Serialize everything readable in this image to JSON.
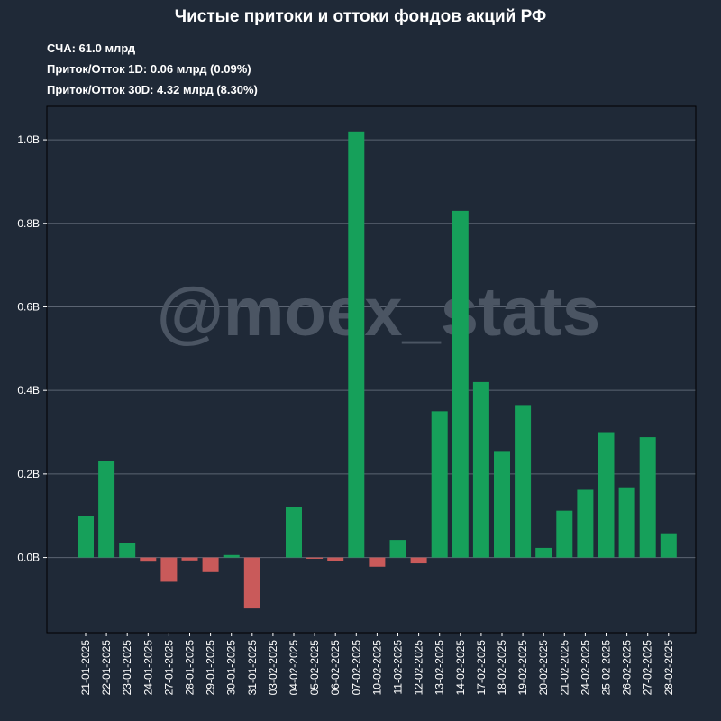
{
  "header": {
    "title": "Чистые притоки и оттоки фондов акций РФ",
    "stat_aum": "СЧА: 61.0 млрд",
    "stat_1d": "Приток/Отток 1D: 0.06 млрд (0.09%)",
    "stat_30d": "Приток/Отток 30D: 4.32 млрд (8.30%)"
  },
  "watermark": "@moex_stats",
  "colors": {
    "background": "#1f2937",
    "positive": "#16a05a",
    "negative": "#c95a5a",
    "grid": "#5b6472",
    "axis_text": "#ffffff",
    "watermark": "#4b5563"
  },
  "chart_data": {
    "type": "bar",
    "categories": [
      "21-01-2025",
      "22-01-2025",
      "23-01-2025",
      "24-01-2025",
      "27-01-2025",
      "28-01-2025",
      "29-01-2025",
      "30-01-2025",
      "31-01-2025",
      "03-02-2025",
      "04-02-2025",
      "05-02-2025",
      "06-02-2025",
      "07-02-2025",
      "10-02-2025",
      "11-02-2025",
      "12-02-2025",
      "13-02-2025",
      "14-02-2025",
      "17-02-2025",
      "18-02-2025",
      "19-02-2025",
      "20-02-2025",
      "21-02-2025",
      "24-02-2025",
      "25-02-2025",
      "26-02-2025",
      "27-02-2025",
      "28-02-2025"
    ],
    "values": [
      0.1,
      0.23,
      0.035,
      -0.01,
      -0.058,
      -0.007,
      -0.035,
      0.006,
      -0.122,
      0.0,
      0.12,
      -0.003,
      -0.008,
      1.02,
      -0.022,
      0.042,
      -0.014,
      0.35,
      0.83,
      0.42,
      0.255,
      0.365,
      0.023,
      0.112,
      0.162,
      0.3,
      0.168,
      0.288,
      0.058
    ],
    "yticks": [
      "0.0B",
      "0.2B",
      "0.4B",
      "0.6B",
      "0.8B",
      "1.0B"
    ],
    "ytick_values": [
      0,
      0.2,
      0.4,
      0.6,
      0.8,
      1.0
    ],
    "ylim": [
      -0.18,
      1.08
    ],
    "grid": true
  }
}
